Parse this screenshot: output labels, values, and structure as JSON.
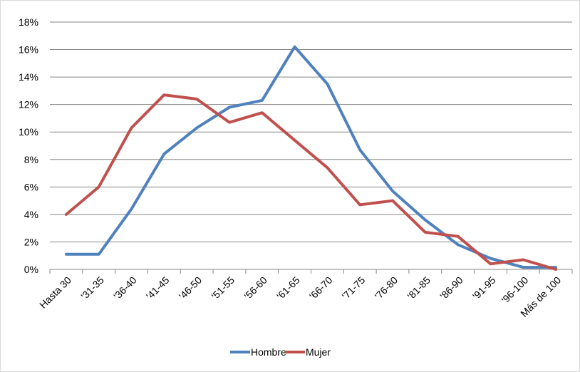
{
  "chart_data": {
    "type": "line",
    "categories": [
      "Hasta 30",
      "'31-35",
      "'36-40",
      "'41-45",
      "'46-50",
      "'51-55",
      "'56-60",
      "'61-65",
      "'66-70",
      "'71-75",
      "'76-80",
      "'81-85",
      "'86-90",
      "'91-95",
      "'96-100",
      "Más de 100"
    ],
    "series": [
      {
        "name": "Hombre",
        "color": "#4f81bd",
        "values": [
          1.1,
          1.1,
          4.4,
          8.4,
          10.3,
          11.8,
          12.3,
          16.2,
          13.5,
          8.7,
          5.7,
          3.6,
          1.8,
          0.8,
          0.15,
          0.15
        ]
      },
      {
        "name": "Mujer",
        "color": "#c0504d",
        "values": [
          4.0,
          6.0,
          10.3,
          12.7,
          12.4,
          10.7,
          11.4,
          9.4,
          7.4,
          4.7,
          5.0,
          2.7,
          2.4,
          0.4,
          0.7,
          0.0
        ]
      }
    ],
    "ylim": [
      0,
      18
    ],
    "yticks": [
      "0%",
      "2%",
      "4%",
      "6%",
      "8%",
      "10%",
      "12%",
      "14%",
      "16%",
      "18%"
    ],
    "grid": true,
    "legend": "bottom"
  }
}
